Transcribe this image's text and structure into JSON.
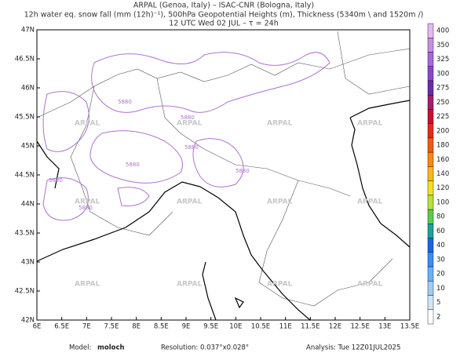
{
  "header": {
    "line1": "ARPAL (Genoa, Italy)  –  ISAC-CNR (Bologna, Italy)",
    "line2": "12h water eq. snow fall (mm (12h)⁻¹), 500hPa Geopotential Heights (m), Thickness (5340m \\ and 1520m /)",
    "line3": "12 UTC Wed 02 JUL  –  τ = 24h"
  },
  "map": {
    "lon_labels": [
      "6E",
      "6.5E",
      "7E",
      "7.5E",
      "8E",
      "8.5E",
      "9E",
      "9.5E",
      "10E",
      "10.5E",
      "11E",
      "11.5E",
      "12E",
      "12.5E",
      "13E",
      "13.5E"
    ],
    "lat_labels": [
      "47N",
      "46.5N",
      "46N",
      "45.5N",
      "45N",
      "44.5N",
      "44N",
      "43.5N",
      "43N",
      "42.5N",
      "42N"
    ],
    "watermark": "ARPAL",
    "contour_label": "5880"
  },
  "colorbar": {
    "labels": [
      "400",
      "350",
      "325",
      "300",
      "275",
      "250",
      "225",
      "200",
      "180",
      "160",
      "140",
      "120",
      "100",
      "80",
      "60",
      "40",
      "30",
      "20",
      "10",
      "5",
      "2"
    ],
    "colors": [
      "#e4b8f2",
      "#c48ee6",
      "#a868d8",
      "#8c46c4",
      "#6e2aa6",
      "#a0206e",
      "#c8102e",
      "#e42a1a",
      "#f05a14",
      "#f68a10",
      "#f8b818",
      "#f4e020",
      "#b8e040",
      "#5cc850",
      "#1ea0a0",
      "#1e64e0",
      "#3c8cf0",
      "#6cb0f4",
      "#9ccef8",
      "#cce6fb",
      "#ffffff"
    ]
  },
  "footer": {
    "model_label": "Model:",
    "model": "moloch",
    "resolution": "Resolution: 0.037°x0.028°",
    "analysis": "Analysis: Tue 12Z01JUL2025"
  }
}
